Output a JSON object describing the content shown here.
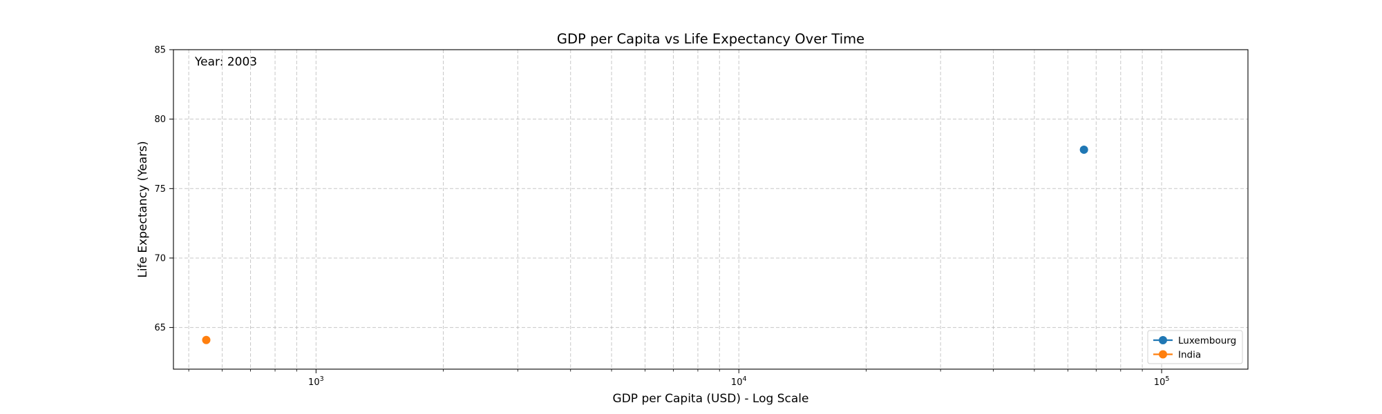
{
  "chart_data": {
    "type": "scatter",
    "title": "GDP per Capita vs Life Expectancy Over Time",
    "xlabel": "GDP per Capita (USD) - Log Scale",
    "ylabel": "Life Expectancy (Years)",
    "x_scale": "log",
    "xlim": [
      460,
      160000
    ],
    "ylim": [
      62,
      85
    ],
    "x_major_ticks": [
      {
        "value": 1000,
        "base": "10",
        "exp": "3"
      },
      {
        "value": 10000,
        "base": "10",
        "exp": "4"
      },
      {
        "value": 100000,
        "base": "10",
        "exp": "5"
      }
    ],
    "y_ticks": [
      65,
      70,
      75,
      80,
      85
    ],
    "grid": true,
    "annotation": "Year: 2003",
    "legend_position": "lower right",
    "series": [
      {
        "name": "Luxembourg",
        "color": "#1f77b4",
        "points": [
          {
            "x": 65500,
            "y": 77.8
          }
        ]
      },
      {
        "name": "India",
        "color": "#ff7f0e",
        "points": [
          {
            "x": 550,
            "y": 64.1
          }
        ]
      }
    ]
  }
}
